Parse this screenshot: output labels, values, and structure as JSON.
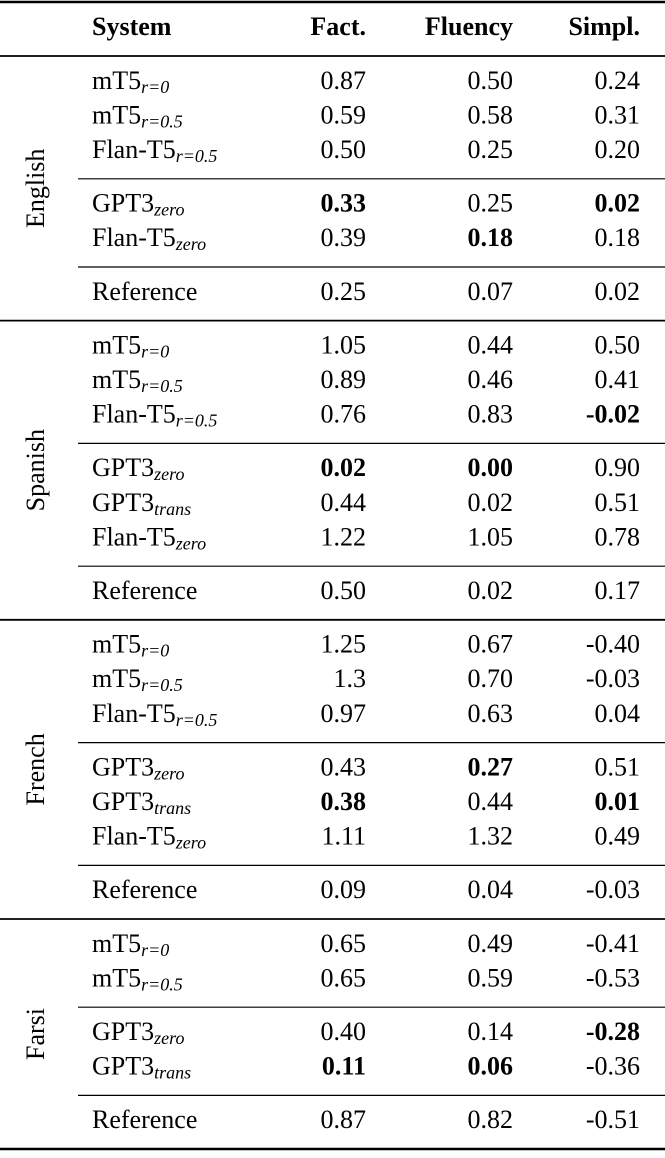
{
  "header": [
    "System",
    "Fact.",
    "Fluency",
    "Simpl."
  ],
  "groups": [
    {
      "language": "English",
      "blocks": [
        [
          {
            "system": "mT5",
            "sub": "r=0",
            "values": [
              "0.87",
              "0.50",
              "0.24"
            ],
            "bold": []
          },
          {
            "system": "mT5",
            "sub": "r=0.5",
            "values": [
              "0.59",
              "0.58",
              "0.31"
            ],
            "bold": []
          },
          {
            "system": "Flan-T5",
            "sub": "r=0.5",
            "values": [
              "0.50",
              "0.25",
              "0.20"
            ],
            "bold": []
          }
        ],
        [
          {
            "system": "GPT3",
            "sub": "zero",
            "values": [
              "0.33",
              "0.25",
              "0.02"
            ],
            "bold": [
              0,
              2
            ]
          },
          {
            "system": "Flan-T5",
            "sub": "zero",
            "values": [
              "0.39",
              "0.18",
              "0.18"
            ],
            "bold": [
              1
            ]
          }
        ],
        [
          {
            "system": "Reference",
            "values": [
              "0.25",
              "0.07",
              "0.02"
            ],
            "bold": []
          }
        ]
      ]
    },
    {
      "language": "Spanish",
      "blocks": [
        [
          {
            "system": "mT5",
            "sub": "r=0",
            "values": [
              "1.05",
              "0.44",
              "0.50"
            ],
            "bold": []
          },
          {
            "system": "mT5",
            "sub": "r=0.5",
            "values": [
              "0.89",
              "0.46",
              "0.41"
            ],
            "bold": []
          },
          {
            "system": "Flan-T5",
            "sub": "r=0.5",
            "values": [
              "0.76",
              "0.83",
              "-0.02"
            ],
            "bold": [
              2
            ]
          }
        ],
        [
          {
            "system": "GPT3",
            "sub": "zero",
            "values": [
              "0.02",
              "0.00",
              "0.90"
            ],
            "bold": [
              0,
              1
            ]
          },
          {
            "system": "GPT3",
            "sub": "trans",
            "values": [
              "0.44",
              "0.02",
              "0.51"
            ],
            "bold": []
          },
          {
            "system": "Flan-T5",
            "sub": "zero",
            "values": [
              "1.22",
              "1.05",
              "0.78"
            ],
            "bold": []
          }
        ],
        [
          {
            "system": "Reference",
            "values": [
              "0.50",
              "0.02",
              "0.17"
            ],
            "bold": []
          }
        ]
      ]
    },
    {
      "language": "French",
      "blocks": [
        [
          {
            "system": "mT5",
            "sub": "r=0",
            "values": [
              "1.25",
              "0.67",
              "-0.40"
            ],
            "bold": []
          },
          {
            "system": "mT5",
            "sub": "r=0.5",
            "values": [
              "1.3",
              "0.70",
              "-0.03"
            ],
            "bold": []
          },
          {
            "system": "Flan-T5",
            "sub": "r=0.5",
            "values": [
              "0.97",
              "0.63",
              "0.04"
            ],
            "bold": []
          }
        ],
        [
          {
            "system": "GPT3",
            "sub": "zero",
            "values": [
              "0.43",
              "0.27",
              "0.51"
            ],
            "bold": [
              1
            ]
          },
          {
            "system": "GPT3",
            "sub": "trans",
            "values": [
              "0.38",
              "0.44",
              "0.01"
            ],
            "bold": [
              0,
              2
            ]
          },
          {
            "system": "Flan-T5",
            "sub": "zero",
            "values": [
              "1.11",
              "1.32",
              "0.49"
            ],
            "bold": []
          }
        ],
        [
          {
            "system": "Reference",
            "values": [
              "0.09",
              "0.04",
              "-0.03"
            ],
            "bold": []
          }
        ]
      ]
    },
    {
      "language": "Farsi",
      "blocks": [
        [
          {
            "system": "mT5",
            "sub": "r=0",
            "values": [
              "0.65",
              "0.49",
              "-0.41"
            ],
            "bold": []
          },
          {
            "system": "mT5",
            "sub": "r=0.5",
            "values": [
              "0.65",
              "0.59",
              "-0.53"
            ],
            "bold": []
          }
        ],
        [
          {
            "system": "GPT3",
            "sub": "zero",
            "values": [
              "0.40",
              "0.14",
              "-0.28"
            ],
            "bold": [
              2
            ]
          },
          {
            "system": "GPT3",
            "sub": "trans",
            "values": [
              "0.11",
              "0.06",
              "-0.36"
            ],
            "bold": [
              0,
              1
            ]
          }
        ],
        [
          {
            "system": "Reference",
            "values": [
              "0.87",
              "0.82",
              "-0.51"
            ],
            "bold": []
          }
        ]
      ]
    }
  ]
}
